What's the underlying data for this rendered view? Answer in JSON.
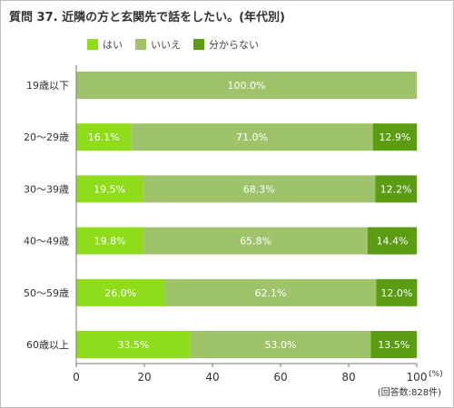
{
  "chart_data": {
    "type": "bar",
    "orientation": "horizontal",
    "stacked": true,
    "title": "質問 37. 近隣の方と玄関先で話をしたい。(年代別)",
    "categories": [
      "19歳以下",
      "20〜29歳",
      "30〜39歳",
      "40〜49歳",
      "50〜59歳",
      "60歳以上"
    ],
    "series": [
      {
        "name": "はい",
        "color": "#8fdc1a",
        "values": [
          0,
          16.1,
          19.5,
          19.8,
          26.0,
          33.5
        ],
        "labels": [
          "",
          "16.1%",
          "19.5%",
          "19.8%",
          "26.0%",
          "33.5%"
        ]
      },
      {
        "name": "いいえ",
        "color": "#9fc36a",
        "values": [
          100.0,
          71.0,
          68.3,
          65.8,
          62.1,
          53.0
        ],
        "labels": [
          "100.0%",
          "71.0%",
          "68.3%",
          "65.8%",
          "62.1%",
          "53.0%"
        ]
      },
      {
        "name": "分からない",
        "color": "#5a9c12",
        "values": [
          0,
          12.9,
          12.2,
          14.4,
          12.0,
          13.5
        ],
        "labels": [
          "",
          "12.9%",
          "12.2%",
          "14.4%",
          "12.0%",
          "13.5%"
        ]
      }
    ],
    "xlim": [
      0,
      100
    ],
    "xticks": [
      "0",
      "20",
      "40",
      "60",
      "80",
      "100"
    ],
    "x_unit": "(%)",
    "note": "(回答数:828件)",
    "grid": false,
    "legend_position": "top-left"
  }
}
